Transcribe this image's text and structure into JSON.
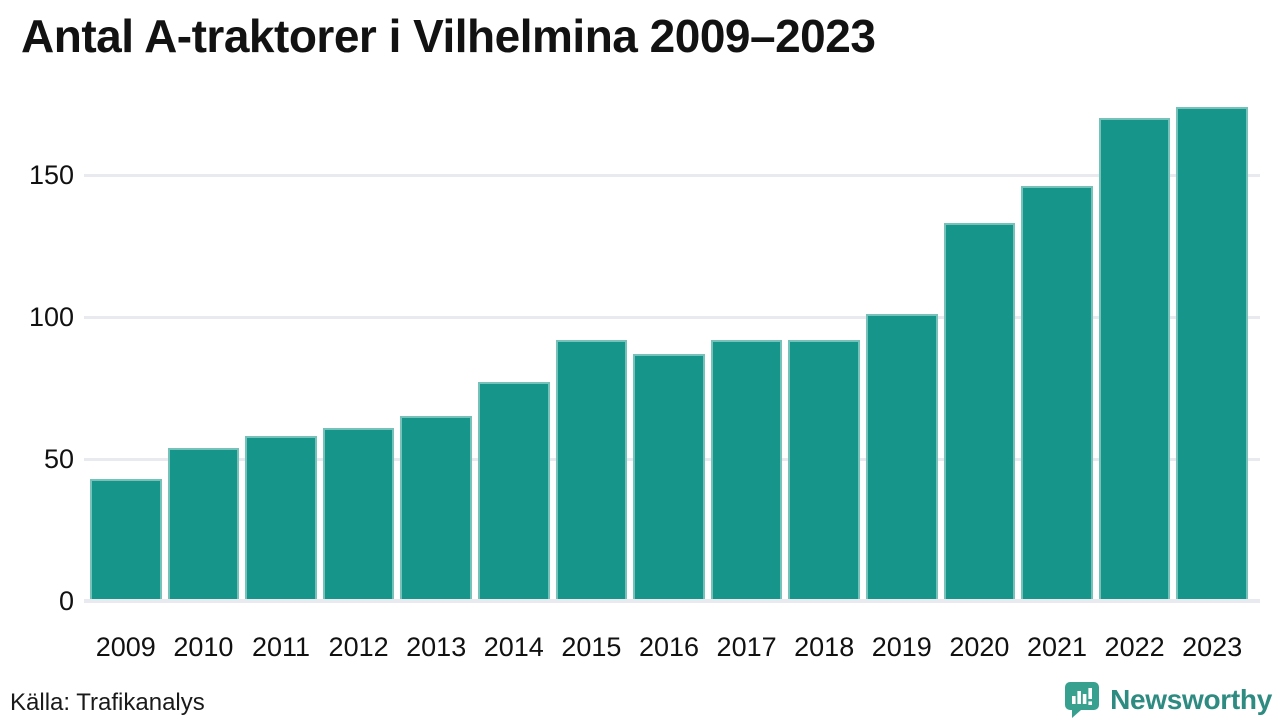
{
  "title": "Antal A-traktorer i Vilhelmina 2009–2023",
  "source": "Källa: Trafikanalys",
  "branding": {
    "name": "Newsworthy",
    "icon": "newsworthy-speech-bubble-barchart-icon"
  },
  "colors": {
    "background": "#ffffff",
    "bar": "#16968a",
    "grid": "#e9eaef",
    "title_text": "#121212",
    "axis_text": "#111111",
    "brand_text": "#2e8b81",
    "brand_icon": "#38a08e"
  },
  "chart_data": {
    "type": "bar",
    "title": "Antal A-traktorer i Vilhelmina 2009–2023",
    "categories": [
      "2009",
      "2010",
      "2011",
      "2012",
      "2013",
      "2014",
      "2015",
      "2016",
      "2017",
      "2018",
      "2019",
      "2020",
      "2021",
      "2022",
      "2023"
    ],
    "values": [
      43,
      54,
      58,
      61,
      65,
      77,
      92,
      87,
      92,
      92,
      101,
      133,
      146,
      170,
      174
    ],
    "series_name": "Antal A-traktorer",
    "xlabel": "",
    "ylabel": "",
    "yticks": [
      0,
      50,
      100,
      150
    ],
    "ylim": [
      0,
      175
    ],
    "grid": "horizontal-only",
    "legend": "none",
    "bar_color": "#16968a",
    "source_text": "Källa: Trafikanalys"
  }
}
